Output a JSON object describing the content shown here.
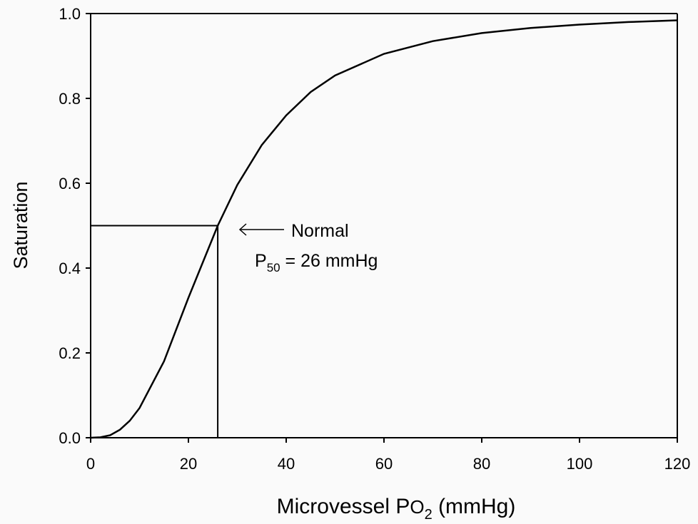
{
  "chart_data": {
    "type": "line",
    "x": [
      0,
      2,
      4,
      6,
      8,
      10,
      15,
      20,
      26,
      30,
      35,
      40,
      45,
      50,
      60,
      70,
      80,
      90,
      100,
      110,
      120
    ],
    "values": [
      0,
      0.001,
      0.006,
      0.019,
      0.04,
      0.07,
      0.18,
      0.33,
      0.5,
      0.596,
      0.69,
      0.76,
      0.815,
      0.854,
      0.905,
      0.935,
      0.954,
      0.966,
      0.974,
      0.98,
      0.984
    ],
    "color": "#000000",
    "xlim": [
      0,
      120
    ],
    "xticks": [
      0,
      20,
      40,
      60,
      80,
      100,
      120
    ],
    "ylim": [
      0,
      1
    ],
    "yticks": [
      {
        "value": 0,
        "label": "0.0"
      },
      {
        "value": 0.2,
        "label": "0.2"
      },
      {
        "value": 0.4,
        "label": "0.4"
      },
      {
        "value": 0.6,
        "label": "0.6"
      },
      {
        "value": 0.8,
        "label": "0.8"
      },
      {
        "value": 1,
        "label": "1.0"
      }
    ],
    "ylabel": "Saturation",
    "xlabel": [
      "Microvessel P",
      "O",
      "2",
      " (mmHg)"
    ],
    "reference": {
      "x": 26,
      "y": 0.5
    },
    "annotation": {
      "label": "Normal",
      "p50": [
        "P",
        "50",
        " = 26 mmHg"
      ]
    }
  }
}
